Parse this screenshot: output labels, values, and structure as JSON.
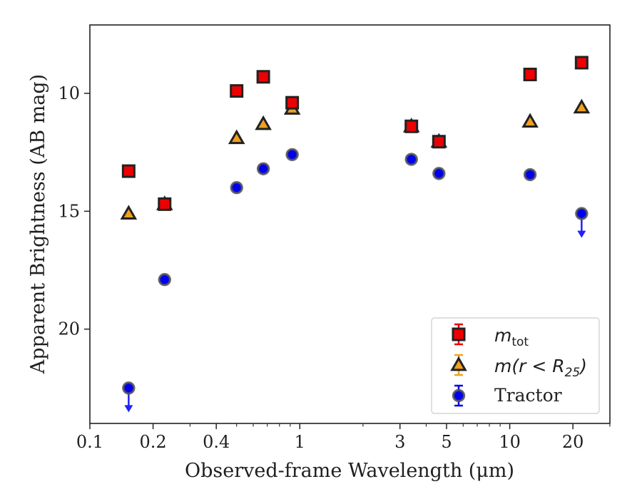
{
  "chart_data": {
    "type": "scatter",
    "xlabel": "Observed-frame Wavelength (μm)",
    "ylabel": "Apparent Brightness (AB mag)",
    "x_scale": "log",
    "xlim": [
      0.1,
      30
    ],
    "ylim": [
      24.0,
      7.1
    ],
    "y_inverted": true,
    "xticks": [
      {
        "value": 0.1,
        "label": "0.1"
      },
      {
        "value": 0.2,
        "label": "0.2"
      },
      {
        "value": 0.4,
        "label": "0.4"
      },
      {
        "value": 1,
        "label": "1"
      },
      {
        "value": 3,
        "label": "3"
      },
      {
        "value": 5,
        "label": "5"
      },
      {
        "value": 10,
        "label": "10"
      },
      {
        "value": 20,
        "label": "20"
      }
    ],
    "yticks": [
      {
        "value": 10,
        "label": "10"
      },
      {
        "value": 15,
        "label": "15"
      },
      {
        "value": 20,
        "label": "20"
      }
    ],
    "grid": false,
    "legend_position": "bottom-right",
    "series": [
      {
        "name": "m_tot",
        "legend_main": "m",
        "legend_sub": "tot",
        "marker": "square",
        "color": "#ee0000",
        "points": [
          {
            "x": 0.153,
            "y": 13.3
          },
          {
            "x": 0.227,
            "y": 14.7
          },
          {
            "x": 0.5,
            "y": 9.9
          },
          {
            "x": 0.67,
            "y": 9.3
          },
          {
            "x": 0.92,
            "y": 10.4
          },
          {
            "x": 3.4,
            "y": 11.4
          },
          {
            "x": 4.6,
            "y": 12.05
          },
          {
            "x": 12.5,
            "y": 9.2
          },
          {
            "x": 22.0,
            "y": 8.7
          }
        ]
      },
      {
        "name": "m(r < R25)",
        "legend_main": "m(r < R",
        "legend_sub": "25",
        "legend_tail": ")",
        "marker": "triangle",
        "color": "#f0a020",
        "points": [
          {
            "x": 0.153,
            "y": 15.1
          },
          {
            "x": 0.227,
            "y": 14.7
          },
          {
            "x": 0.5,
            "y": 11.9
          },
          {
            "x": 0.67,
            "y": 11.3
          },
          {
            "x": 0.92,
            "y": 10.65
          },
          {
            "x": 3.4,
            "y": 11.4
          },
          {
            "x": 4.6,
            "y": 12.05
          },
          {
            "x": 12.5,
            "y": 11.2
          },
          {
            "x": 22.0,
            "y": 10.6
          }
        ]
      },
      {
        "name": "Tractor",
        "marker": "circle",
        "color": "#0000ee",
        "points": [
          {
            "x": 0.153,
            "y": 22.5,
            "upper_limit": true
          },
          {
            "x": 0.227,
            "y": 17.9
          },
          {
            "x": 0.5,
            "y": 14.0
          },
          {
            "x": 0.67,
            "y": 13.2
          },
          {
            "x": 0.92,
            "y": 12.6
          },
          {
            "x": 3.4,
            "y": 12.8
          },
          {
            "x": 4.6,
            "y": 13.4
          },
          {
            "x": 12.5,
            "y": 13.45
          },
          {
            "x": 22.0,
            "y": 15.1,
            "upper_limit": true
          }
        ]
      }
    ],
    "colors": {
      "axis": "#222222",
      "marker_edge": "#222222",
      "legend_border": "#cccccc",
      "upper_limit_arrow": "#2020ff"
    }
  }
}
